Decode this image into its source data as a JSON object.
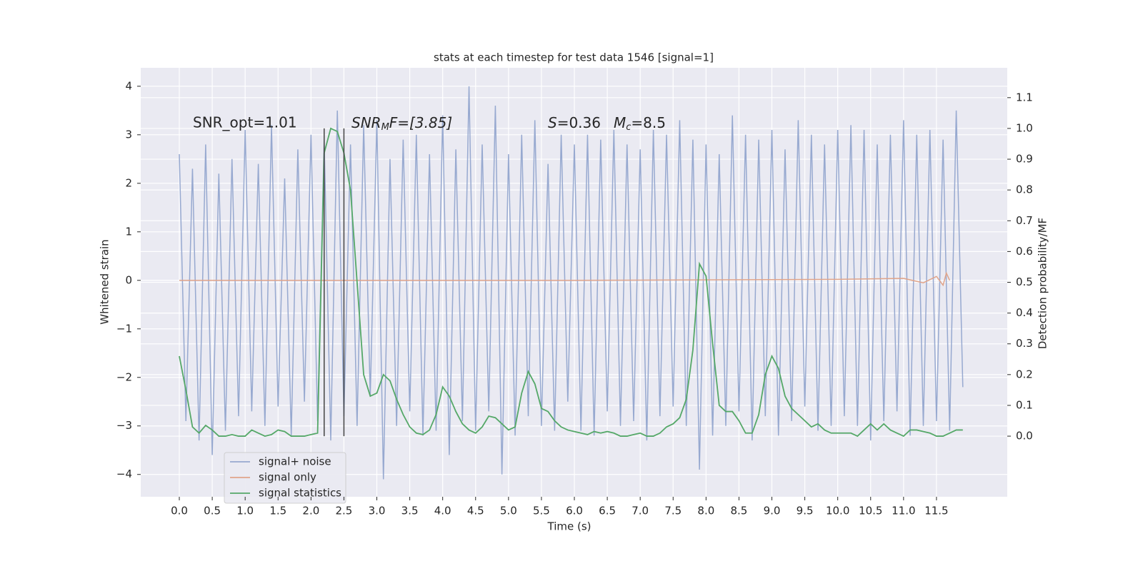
{
  "chart_data": {
    "type": "line",
    "title": "stats at each timestep for test data 1546 [signal=1]",
    "xlabel": "Time (s)",
    "ylabel": "Whitened strain",
    "y2label": "Detection probability/MF",
    "annotations": {
      "snr_opt": "SNR_opt=1.01",
      "snr_mf": [
        "SNR",
        "M",
        "F=[3.85]"
      ],
      "s": [
        "S",
        "=0.36"
      ],
      "mc": [
        "M",
        "c",
        "=8.5"
      ]
    },
    "grid": true,
    "legend": "lower left",
    "xlim": [
      -0.586,
      12.575
    ],
    "ylim": [
      -4.46,
      4.38
    ],
    "y2lim": [
      -0.197,
      1.197
    ],
    "xticks": [
      {
        "value": 0,
        "label": "0.0"
      },
      0.5,
      {
        "value": 1,
        "label": "1.0"
      },
      1.5,
      {
        "value": 2,
        "label": "2.0"
      },
      2.5,
      {
        "value": 3,
        "label": "3.0"
      },
      3.5,
      {
        "value": 4,
        "label": "4.0"
      },
      4.5,
      {
        "value": 5,
        "label": "5.0"
      },
      5.5,
      {
        "value": 6,
        "label": "6.0"
      },
      6.5,
      {
        "value": 7,
        "label": "7.0"
      },
      7.5,
      {
        "value": 8,
        "label": "8.0"
      },
      8.5,
      {
        "value": 9,
        "label": "9.0"
      },
      9.5,
      {
        "value": 10,
        "label": "10.0"
      },
      10.5,
      {
        "value": 11,
        "label": "11.0"
      },
      11.5
    ],
    "yticks": [
      {
        "value": -4,
        "label": "−4"
      },
      {
        "value": -3,
        "label": "−3"
      },
      {
        "value": -2,
        "label": "−2"
      },
      {
        "value": -1,
        "label": "−1"
      },
      0,
      1,
      2,
      3,
      4
    ],
    "y2ticks": [
      {
        "value": 0,
        "label": "0.0"
      },
      0.1,
      0.2,
      0.3,
      0.4,
      0.5,
      0.6,
      0.7,
      0.8,
      0.9,
      {
        "value": 1,
        "label": "1.0"
      },
      1.1
    ],
    "vlines": {
      "x": [
        2.2,
        2.5
      ],
      "ymin": 0,
      "ymax": 1,
      "color": "#444444"
    },
    "x": [
      0,
      0.1,
      0.2,
      0.3,
      0.4,
      0.5,
      0.6,
      0.7,
      0.8,
      0.9,
      1,
      1.1,
      1.2,
      1.3,
      1.4,
      1.5,
      1.6,
      1.7,
      1.8,
      1.9,
      2,
      2.1,
      2.2,
      2.3,
      2.4,
      2.5,
      2.6,
      2.7,
      2.8,
      2.9,
      3,
      3.1,
      3.2,
      3.3,
      3.4,
      3.5,
      3.6,
      3.7,
      3.8,
      3.9,
      4,
      4.1,
      4.2,
      4.3,
      4.4,
      4.5,
      4.6,
      4.7,
      4.8,
      4.9,
      5,
      5.1,
      5.2,
      5.3,
      5.4,
      5.5,
      5.6,
      5.7,
      5.8,
      5.9,
      6,
      6.1,
      6.2,
      6.3,
      6.4,
      6.5,
      6.6,
      6.7,
      6.8,
      6.9,
      7,
      7.1,
      7.2,
      7.3,
      7.4,
      7.5,
      7.6,
      7.7,
      7.8,
      7.9,
      8,
      8.1,
      8.2,
      8.3,
      8.4,
      8.5,
      8.6,
      8.7,
      8.8,
      8.9,
      9,
      9.1,
      9.2,
      9.3,
      9.4,
      9.5,
      9.6,
      9.7,
      9.8,
      9.9,
      10,
      10.1,
      10.2,
      10.3,
      10.4,
      10.5,
      10.6,
      10.7,
      10.8,
      10.9,
      11,
      11.1,
      11.2,
      11.3,
      11.4,
      11.5,
      11.6,
      11.7,
      11.8,
      11.9
    ],
    "series": [
      {
        "name": "signal+ noise",
        "color": "#97a9d0",
        "values": [
          2.6,
          -2.9,
          2.3,
          -3.3,
          2.8,
          -3.6,
          2.2,
          -3.1,
          2.5,
          -2.8,
          3.1,
          -2.7,
          2.4,
          -3.0,
          3.2,
          -2.6,
          2.1,
          -3.2,
          2.7,
          -2.5,
          3.0,
          -2.9,
          2.9,
          -3.3,
          3.5,
          -2.8,
          2.8,
          -3.0,
          3.2,
          -2.4,
          3.3,
          -4.1,
          2.5,
          -3.0,
          2.9,
          -2.7,
          3.0,
          -3.2,
          2.6,
          -3.1,
          3.4,
          -3.6,
          2.7,
          -2.9,
          4.0,
          -3.1,
          2.8,
          -2.7,
          3.6,
          -4.0,
          2.6,
          -3.2,
          3.0,
          -2.8,
          3.3,
          -3.0,
          2.4,
          -3.1,
          3.0,
          -2.5,
          2.8,
          -3.1,
          3.0,
          -3.2,
          2.9,
          -2.7,
          3.1,
          -3.0,
          2.8,
          -2.9,
          2.7,
          -3.3,
          3.1,
          -2.8,
          3.0,
          -2.6,
          3.3,
          -3.0,
          2.9,
          -3.9,
          2.8,
          -3.2,
          2.6,
          -3.0,
          3.4,
          -2.7,
          3.0,
          -3.3,
          2.9,
          -2.8,
          3.1,
          -3.2,
          2.7,
          -2.9,
          3.3,
          -2.6,
          3.0,
          -3.1,
          2.8,
          -3.0,
          3.1,
          -2.8,
          3.2,
          -3.0,
          3.1,
          -3.3,
          2.8,
          -2.9,
          3.0,
          -2.7,
          3.3,
          -3.2,
          3.0,
          -3.0,
          3.1,
          -2.9,
          2.9,
          -3.1,
          3.5,
          -2.2
        ]
      },
      {
        "name": "signal only",
        "color": "#e0a48a",
        "x": [
          0,
          2,
          4,
          6,
          8,
          10,
          11,
          11.3,
          11.5,
          11.6,
          11.65,
          11.7
        ],
        "values": [
          0,
          0,
          0,
          0,
          0.01,
          0.02,
          0.04,
          -0.05,
          0.08,
          -0.1,
          0.15,
          0
        ]
      },
      {
        "name": "signal statistics",
        "color": "#55a868",
        "axis": "y2",
        "values": [
          0.26,
          0.15,
          0.03,
          0.01,
          0.035,
          0.02,
          0,
          0,
          0.005,
          0,
          0,
          0.02,
          0.01,
          0,
          0.005,
          0.02,
          0.015,
          0,
          0,
          0,
          0.005,
          0.01,
          0.92,
          1.0,
          0.99,
          0.92,
          0.8,
          0.5,
          0.2,
          0.13,
          0.14,
          0.2,
          0.18,
          0.12,
          0.07,
          0.03,
          0.01,
          0.005,
          0.02,
          0.07,
          0.16,
          0.13,
          0.08,
          0.04,
          0.02,
          0.01,
          0.03,
          0.065,
          0.06,
          0.04,
          0.02,
          0.03,
          0.14,
          0.21,
          0.17,
          0.09,
          0.08,
          0.05,
          0.03,
          0.02,
          0.015,
          0.01,
          0.005,
          0.015,
          0.01,
          0.015,
          0.01,
          0,
          0,
          0.005,
          0.01,
          0,
          0,
          0.01,
          0.03,
          0.04,
          0.06,
          0.12,
          0.28,
          0.56,
          0.52,
          0.3,
          0.1,
          0.08,
          0.08,
          0.05,
          0.01,
          0.01,
          0.07,
          0.2,
          0.26,
          0.22,
          0.13,
          0.09,
          0.07,
          0.05,
          0.03,
          0.04,
          0.02,
          0.01,
          0.01,
          0.01,
          0.01,
          0,
          0.02,
          0.04,
          0.02,
          0.04,
          0.02,
          0.01,
          0,
          0.02,
          0.02,
          0.015,
          0.01,
          0,
          0,
          0.01,
          0.02,
          0.02
        ]
      }
    ]
  }
}
